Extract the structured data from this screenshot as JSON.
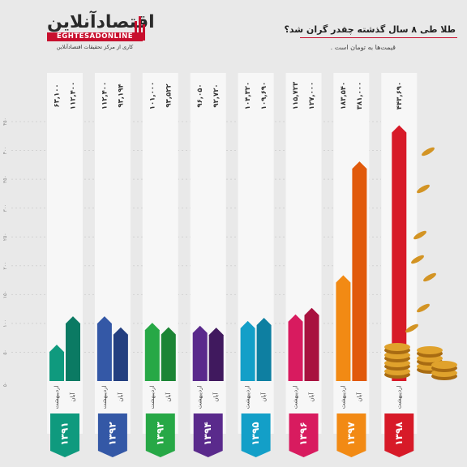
{
  "header": {
    "logo_main": "اقتصادآنلاین",
    "logo_latin": "EGHTESADONLINE",
    "logo_tagline": "کاری از مرکز تحقیقات اقتصادآنلاین",
    "title": "طلا طی ۸ سال گذشته چقدر گران شد؟",
    "subtitle": "قیمت‌ها به تومان است ."
  },
  "chart_data": {
    "type": "bar",
    "title": "طلا طی ۸ سال گذشته چقدر گران شد؟",
    "subtitle": "قیمت‌ها به تومان است .",
    "xlabel": "",
    "ylabel": "",
    "ylim": [
      0,
      500000
    ],
    "y_ticks": [
      50000,
      100000,
      150000,
      200000,
      250000,
      300000,
      350000,
      400000,
      450000
    ],
    "y_tick_labels": [
      "۵۰",
      "۱۰۰",
      "۱۵۰",
      "۲۰۰",
      "۲۵۰",
      "۳۰۰",
      "۳۵۰",
      "۴۰۰",
      "۴۵۰"
    ],
    "categories": [
      "۱۳۹۱",
      "۱۳۹۲",
      "۱۳۹۳",
      "۱۳۹۴",
      "۱۳۹۵",
      "۱۳۹۶",
      "۱۳۹۷",
      "۱۳۹۸"
    ],
    "category_colors": [
      "#0f9a7e",
      "#3458a6",
      "#27a846",
      "#5a2a8c",
      "#139fc8",
      "#d81b5f",
      "#f28a14",
      "#d71a28"
    ],
    "category_colors_dark": [
      "#0b7a63",
      "#243f80",
      "#1c8535",
      "#40195e",
      "#0e7fa1",
      "#a8123f",
      "#e15a0c",
      "#d71a28"
    ],
    "series": [
      {
        "name": "اردیبهشت",
        "values": [
          63100,
          112400,
          101000,
          96050,
          104320,
          115723,
          183540,
          443690
        ],
        "labels": [
          "۶۳,۱۰۰",
          "۱۱۲,۴۰۰",
          "۱۰۱,۰۰۰",
          "۹۶,۰۵۰",
          "۱۰۴,۳۲۰",
          "۱۱۵,۷۲۳",
          "۱۸۳,۵۴۰",
          "۴۴۳,۶۹۰"
        ]
      },
      {
        "name": "آبان",
        "values": [
          112400,
          93194,
          93522,
          92720,
          109690,
          127000,
          381000,
          null
        ],
        "labels": [
          "۱۱۲,۴۰۰",
          "۹۳,۱۹۴",
          "۹۳,۵۲۲",
          "۹۲,۷۲۰",
          "۱۰۹,۶۹۰",
          "۱۲۷,۰۰۰",
          "۳۸۱,۰۰۰",
          null
        ]
      }
    ],
    "grid": true,
    "legend": "none"
  }
}
